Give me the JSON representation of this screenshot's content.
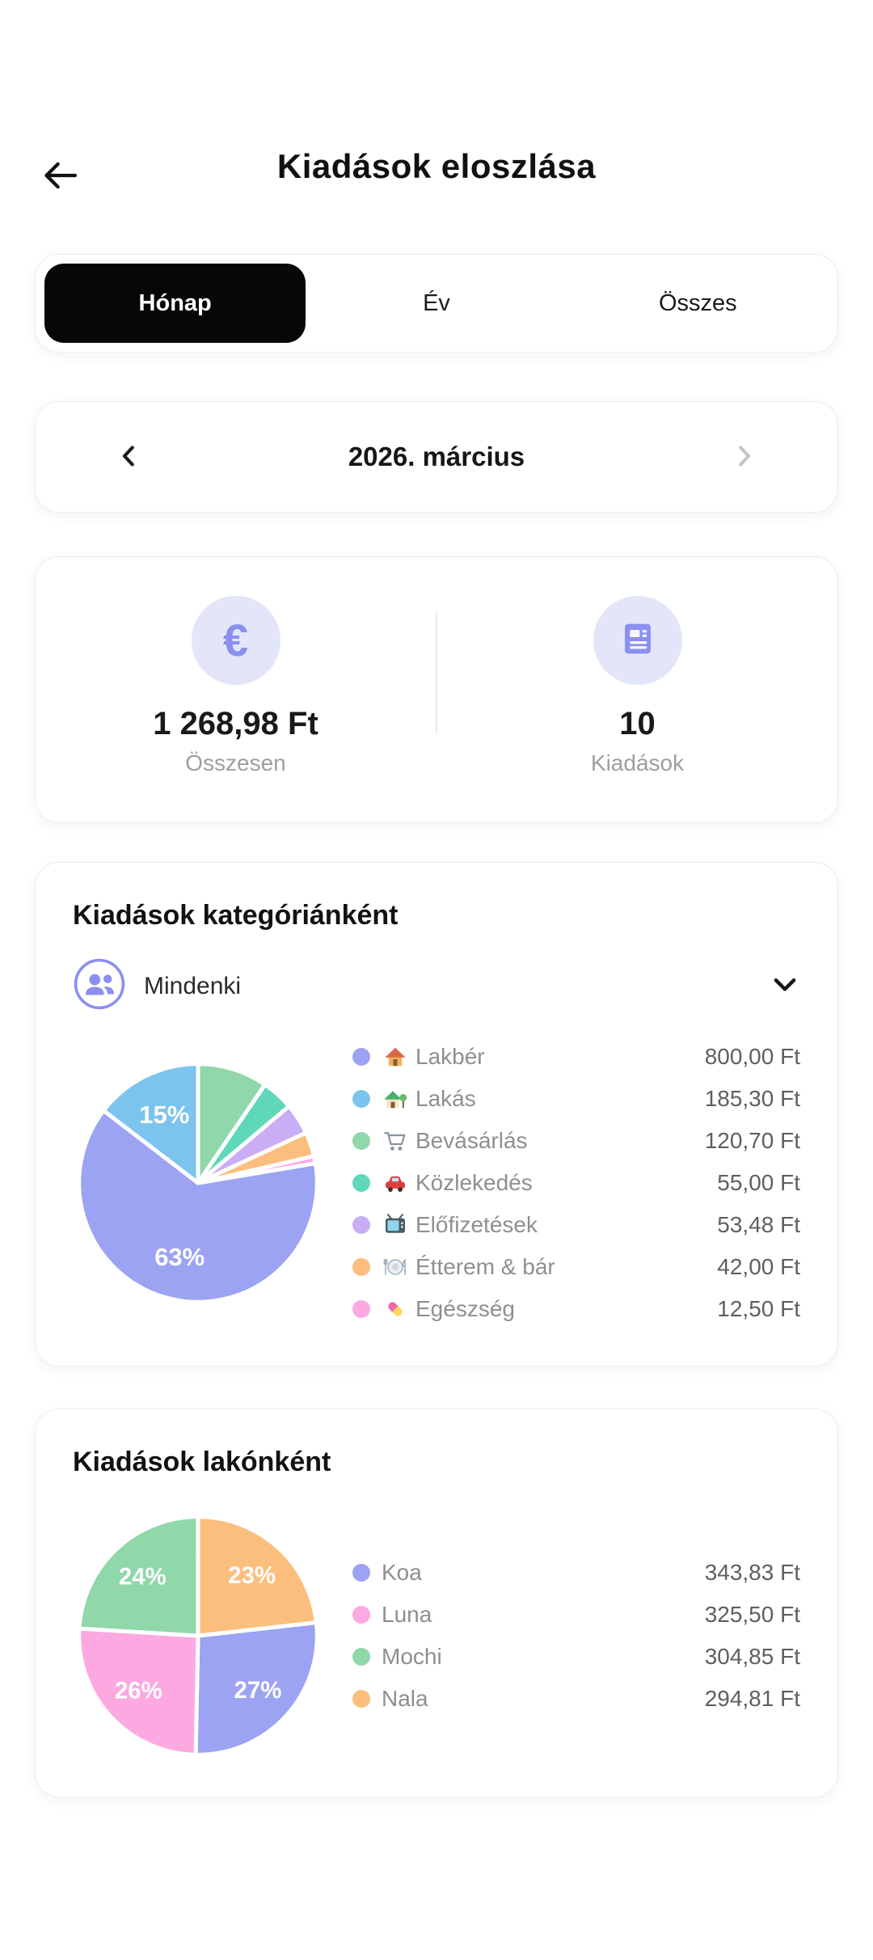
{
  "header": {
    "title": "Kiadások eloszlása"
  },
  "tabs": {
    "items": [
      {
        "label": "Hónap",
        "active": true
      },
      {
        "label": "Év",
        "active": false
      },
      {
        "label": "Összes",
        "active": false
      }
    ]
  },
  "period": {
    "label": "2026. március"
  },
  "summary": {
    "total": {
      "value": "1 268,98 Ft",
      "caption": "Összesen",
      "icon": "euro-icon",
      "icon_char": "€"
    },
    "count": {
      "value": "10",
      "caption": "Kiadások",
      "icon": "receipt-icon"
    }
  },
  "sections": {
    "categories": {
      "title": "Kiadások kategóriánként",
      "filter_label": "Mindenki"
    },
    "residents": {
      "title": "Kiadások lakónként"
    }
  },
  "colors": {
    "accent": "#8a8ff0",
    "icon_circle_bg": "#e3e5f9",
    "active_tab_bg": "#070707"
  },
  "chart_data": [
    {
      "type": "pie",
      "title": "Kiadások kategóriánként",
      "unit": "Ft",
      "total": 1268.98,
      "rotation": 80.5,
      "label_radius": 0.64,
      "label_size": 20,
      "legend_position": "right",
      "slices": [
        {
          "label": "Lakbér",
          "icon": "house-icon",
          "value": 800.0,
          "amount": "800,00 Ft",
          "pct": "63%",
          "color": "#9ca3f2"
        },
        {
          "label": "Lakás",
          "icon": "house-garden-icon",
          "value": 185.3,
          "amount": "185,30 Ft",
          "pct": "15%",
          "color": "#7cc4ed"
        },
        {
          "label": "Bevásárlás",
          "icon": "shopping-cart-icon",
          "value": 120.7,
          "amount": "120,70 Ft",
          "pct": null,
          "color": "#90d7a9"
        },
        {
          "label": "Közlekedés",
          "icon": "car-icon",
          "value": 55.0,
          "amount": "55,00 Ft",
          "pct": null,
          "color": "#5ed8b9"
        },
        {
          "label": "Előfizetések",
          "icon": "tv-icon",
          "value": 53.48,
          "amount": "53,48 Ft",
          "pct": null,
          "color": "#c9adf5"
        },
        {
          "label": "Étterem & bár",
          "icon": "dining-icon",
          "value": 42.0,
          "amount": "42,00 Ft",
          "pct": null,
          "color": "#fcbe7d"
        },
        {
          "label": "Egészség",
          "icon": "pill-icon",
          "value": 12.5,
          "amount": "12,50 Ft",
          "pct": null,
          "color": "#fca9e2"
        }
      ]
    },
    {
      "type": "pie",
      "title": "Kiadások lakónként",
      "unit": "Ft",
      "total": 1268.99,
      "rotation": 83.6,
      "label_radius": 0.68,
      "label_size": 19,
      "legend_position": "right",
      "slices": [
        {
          "label": "Koa",
          "value": 343.83,
          "amount": "343,83 Ft",
          "pct": "27%",
          "color": "#9ca3f2"
        },
        {
          "label": "Luna",
          "value": 325.5,
          "amount": "325,50 Ft",
          "pct": "26%",
          "color": "#fca9e2"
        },
        {
          "label": "Mochi",
          "value": 304.85,
          "amount": "304,85 Ft",
          "pct": "24%",
          "color": "#90d7a9"
        },
        {
          "label": "Nala",
          "value": 294.81,
          "amount": "294,81 Ft",
          "pct": "23%",
          "color": "#fcbe7d"
        }
      ]
    }
  ]
}
